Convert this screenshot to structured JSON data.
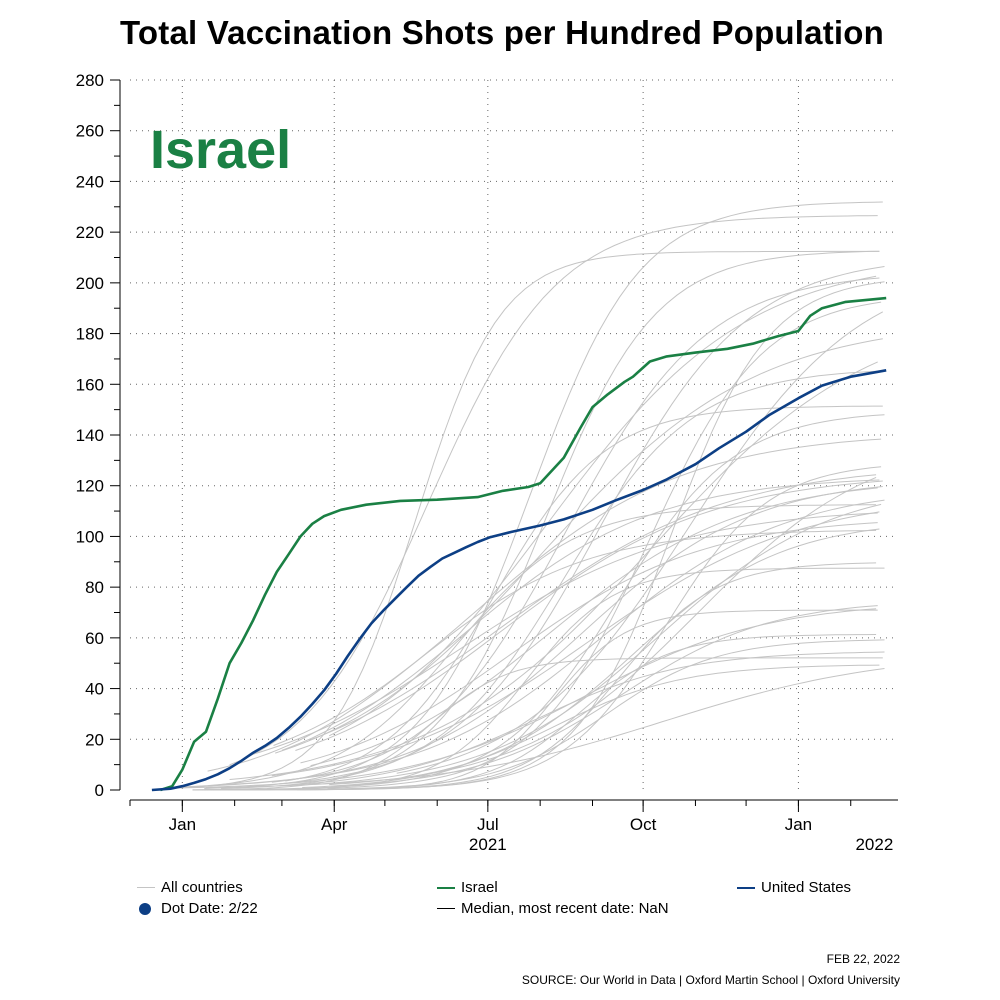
{
  "title": "Total Vaccination Shots per Hundred Population",
  "colors": {
    "israel": "#1a8044",
    "united_states": "#0d3f85",
    "all_countries": "#c4c4c4",
    "median": "#000000",
    "dot": "#0d3f85"
  },
  "legend": {
    "all_countries": "All countries",
    "israel": "Israel",
    "united_states": "United States",
    "dot_date": "Dot Date: 2/22",
    "median": "Median, most recent date: NaN"
  },
  "footer": {
    "date": "FEB 22, 2022",
    "source": "SOURCE: Our World in Data | Oxford Martin School | Oxford University"
  },
  "chart_data": {
    "type": "line",
    "title": "Total Vaccination Shots per Hundred Population",
    "annotation": "Israel",
    "ylim": [
      0,
      280
    ],
    "yticks": [
      0,
      20,
      40,
      60,
      80,
      100,
      120,
      140,
      160,
      180,
      200,
      220,
      240,
      260,
      280
    ],
    "xlim": [
      "2020-12-01",
      "2022-03-01"
    ],
    "xticks": [
      {
        "date": "2021-01-01",
        "label": "Jan"
      },
      {
        "date": "2021-04-01",
        "label": "Apr"
      },
      {
        "date": "2021-07-01",
        "label": "Jul"
      },
      {
        "date": "2021-10-01",
        "label": "Oct"
      },
      {
        "date": "2022-01-01",
        "label": "Jan"
      }
    ],
    "year_labels": [
      {
        "date": "2021-07-01",
        "label": "2021"
      },
      {
        "date": "2022-02-15",
        "label": "2022"
      }
    ],
    "grid": true,
    "legend_position": "bottom",
    "series": [
      {
        "name": "Israel",
        "color": "#1a8044",
        "points": [
          [
            "2020-12-19",
            0
          ],
          [
            "2020-12-26",
            1.5
          ],
          [
            "2021-01-01",
            8
          ],
          [
            "2021-01-08",
            19
          ],
          [
            "2021-01-15",
            23
          ],
          [
            "2021-01-22",
            36
          ],
          [
            "2021-01-29",
            50
          ],
          [
            "2021-02-05",
            58
          ],
          [
            "2021-02-12",
            67
          ],
          [
            "2021-02-19",
            77
          ],
          [
            "2021-02-26",
            86
          ],
          [
            "2021-03-05",
            93
          ],
          [
            "2021-03-12",
            100
          ],
          [
            "2021-03-19",
            105
          ],
          [
            "2021-03-26",
            108
          ],
          [
            "2021-04-05",
            110.5
          ],
          [
            "2021-04-20",
            112.5
          ],
          [
            "2021-05-10",
            114
          ],
          [
            "2021-06-01",
            114.5
          ],
          [
            "2021-06-25",
            115.5
          ],
          [
            "2021-07-10",
            118
          ],
          [
            "2021-07-25",
            119.5
          ],
          [
            "2021-08-01",
            121
          ],
          [
            "2021-08-15",
            131
          ],
          [
            "2021-08-25",
            143
          ],
          [
            "2021-09-01",
            151
          ],
          [
            "2021-09-10",
            156
          ],
          [
            "2021-09-20",
            161
          ],
          [
            "2021-09-25",
            163
          ],
          [
            "2021-10-05",
            169
          ],
          [
            "2021-10-15",
            171
          ],
          [
            "2021-11-01",
            172.5
          ],
          [
            "2021-11-20",
            174
          ],
          [
            "2021-12-05",
            176
          ],
          [
            "2021-12-20",
            179
          ],
          [
            "2022-01-01",
            181
          ],
          [
            "2022-01-08",
            187
          ],
          [
            "2022-01-15",
            190
          ],
          [
            "2022-01-29",
            192.5
          ],
          [
            "2022-02-22",
            194
          ]
        ]
      },
      {
        "name": "United States",
        "color": "#0d3f85",
        "points": [
          [
            "2020-12-14",
            0
          ],
          [
            "2020-12-25",
            0.5
          ],
          [
            "2021-01-01",
            1.5
          ],
          [
            "2021-01-08",
            2.8
          ],
          [
            "2021-01-15",
            4.3
          ],
          [
            "2021-01-22",
            6.2
          ],
          [
            "2021-01-29",
            8.6
          ],
          [
            "2021-02-05",
            11.5
          ],
          [
            "2021-02-12",
            14.7
          ],
          [
            "2021-02-19",
            17.4
          ],
          [
            "2021-02-26",
            20.5
          ],
          [
            "2021-03-05",
            24.5
          ],
          [
            "2021-03-12",
            28.9
          ],
          [
            "2021-03-19",
            33.9
          ],
          [
            "2021-03-26",
            39.3
          ],
          [
            "2021-04-02",
            45.7
          ],
          [
            "2021-04-09",
            52.8
          ],
          [
            "2021-04-16",
            59.5
          ],
          [
            "2021-04-23",
            65.7
          ],
          [
            "2021-04-30",
            70.7
          ],
          [
            "2021-05-07",
            75.4
          ],
          [
            "2021-05-14",
            80
          ],
          [
            "2021-05-21",
            84.5
          ],
          [
            "2021-05-28",
            88
          ],
          [
            "2021-06-04",
            91.3
          ],
          [
            "2021-06-11",
            93.5
          ],
          [
            "2021-06-18",
            95.7
          ],
          [
            "2021-06-25",
            97.8
          ],
          [
            "2021-07-02",
            99.6
          ],
          [
            "2021-07-15",
            101.8
          ],
          [
            "2021-08-01",
            104.3
          ],
          [
            "2021-08-15",
            106.7
          ],
          [
            "2021-09-01",
            110.5
          ],
          [
            "2021-09-15",
            114.3
          ],
          [
            "2021-10-01",
            118.3
          ],
          [
            "2021-10-15",
            122.5
          ],
          [
            "2021-11-01",
            128.5
          ],
          [
            "2021-11-15",
            134.8
          ],
          [
            "2021-12-01",
            141.3
          ],
          [
            "2021-12-15",
            148
          ],
          [
            "2022-01-01",
            154.5
          ],
          [
            "2022-01-15",
            159.5
          ],
          [
            "2022-02-01",
            163
          ],
          [
            "2022-02-22",
            165.5
          ]
        ]
      }
    ]
  }
}
